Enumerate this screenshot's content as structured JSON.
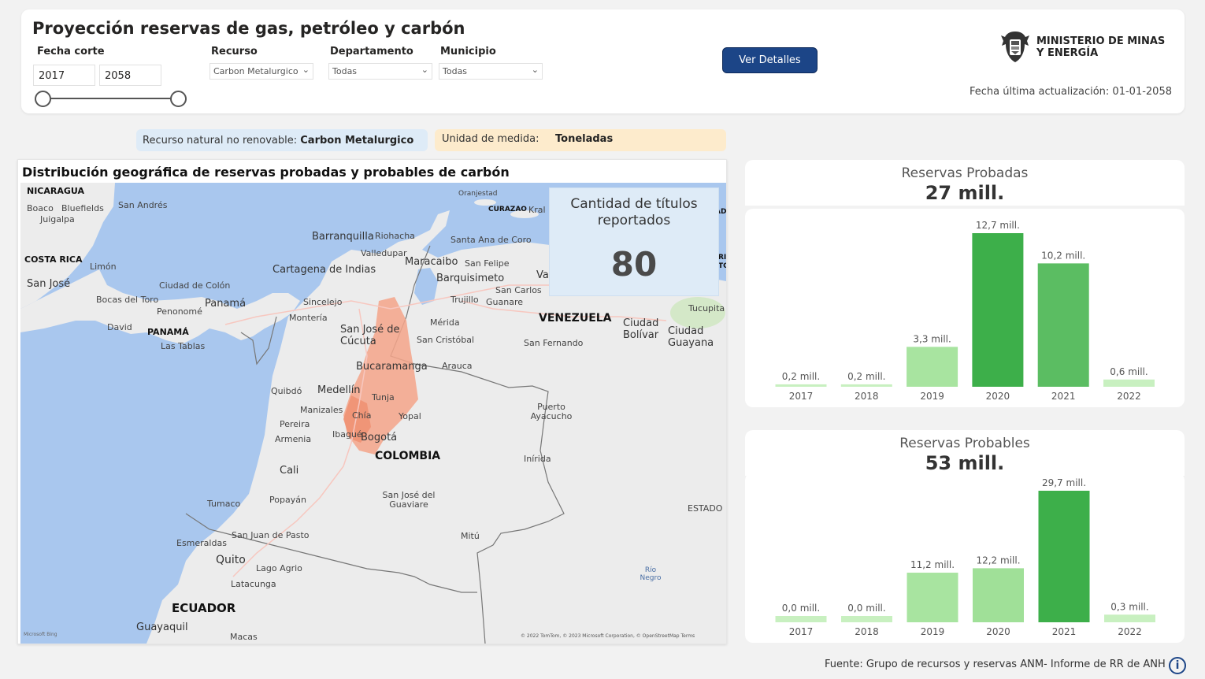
{
  "header": {
    "title": "Proyección reservas de gas, petróleo y carbón",
    "fecha_corte_label": "Fecha corte",
    "fecha_desde": "2017",
    "fecha_hasta": "2058",
    "recurso_label": "Recurso",
    "recurso_value": "Carbon Metalurgico",
    "departamento_label": "Departamento",
    "departamento_value": "Todas",
    "municipio_label": "Municipio",
    "municipio_value": "Todas",
    "details_button": "Ver Detalles",
    "logo_line1": "MINISTERIO DE MINAS",
    "logo_line2": "Y ENERGÍA",
    "updated": "Fecha última actualización: 01-01-2058"
  },
  "chips": {
    "resource_label": "Recurso natural no renovable: ",
    "resource_value": "Carbon Metalurgico",
    "unit_label": "Unidad de medida:",
    "unit_value": "Toneladas"
  },
  "map": {
    "title": "Distribución geográfica de reservas probadas y probables de carbón",
    "kpi_label": "Cantidad de títulos reportados",
    "kpi_value": "80",
    "attribution": "© 2022 TomTom, © 2023 Microsoft Corporation, © OpenStreetMap  Terms",
    "bing": "Microsoft Bing",
    "labels": {
      "nicaragua": "NICARAGUA",
      "boaco": "Boaco",
      "bluefields": "Bluefields",
      "juigalpa": "Juigalpa",
      "san_andres": "San Andrés",
      "costa_rica": "COSTA RICA",
      "limon": "Limón",
      "san_jose_cr": "San José",
      "ciudad_colon": "Ciudad de Colón",
      "bocas": "Bocas del Toro",
      "panama_city": "Panamá",
      "penonome": "Penonomé",
      "david": "David",
      "panama": "PANAMÁ",
      "las_tablas": "Las Tablas",
      "oranjestad": "Oranjestad",
      "curazao": "CURAZAO",
      "kralendijk": "Kral",
      "barranquilla": "Barranquilla",
      "riohacha": "Riohacha",
      "santa_ana": "Santa Ana de Coro",
      "valledupar": "Valledupar",
      "maracaibo": "Maracaibo",
      "san_felipe": "San Felipe",
      "cartagena": "Cartagena de Indias",
      "barquisimeto": "Barquisimeto",
      "va": "Va",
      "sincelejo": "Sincelejo",
      "trujillo": "Trujillo",
      "san_carlos": "San Carlos",
      "guanare": "Guanare",
      "monteria": "Montería",
      "merida": "Mérida",
      "venezuela": "VENEZUELA",
      "ciudad_bolivar": "Ciudad Bolívar",
      "ciudad_guayana": "Ciudad Guayana",
      "tucupita": "Tucupita",
      "san_jose_cucuta": "San José de Cúcuta",
      "san_cristobal": "San Cristóbal",
      "san_fernando": "San Fernando",
      "bucaramanga": "Bucaramanga",
      "arauca": "Arauca",
      "quibdo": "Quibdó",
      "medellin": "Medellín",
      "tunja": "Tunja",
      "manizales": "Manizales",
      "chia": "Chía",
      "yopal": "Yopal",
      "puerto_ayacucho": "Puerto Ayacucho",
      "pereira": "Pereira",
      "ibague": "Ibagué",
      "bogota": "Bogotá",
      "armenia": "Armenia",
      "colombia": "COLOMBIA",
      "inirida": "Inírida",
      "cali": "Cali",
      "popayan": "Popayán",
      "tumaco": "Tumaco",
      "san_jose_guaviare": "San José del Guaviare",
      "estado": "ESTADO",
      "esmeraldas": "Esmeraldas",
      "pasto": "San Juan de Pasto",
      "mitu": "Mitú",
      "quito": "Quito",
      "lago_agrio": "Lago Agrio",
      "rio_negro": "Río Negro",
      "latacunga": "Latacunga",
      "ecuador": "ECUADOR",
      "guayaquil": "Guayaquil",
      "macas": "Macas",
      "ri": "RI",
      "to": "TO",
      "ad": "AD"
    }
  },
  "charts": [
    {
      "title": "Reservas Probadas",
      "total": "27 mill.",
      "chart_data": {
        "type": "bar",
        "categories": [
          "2017",
          "2018",
          "2019",
          "2020",
          "2021",
          "2022"
        ],
        "values": [
          0.2,
          0.2,
          3.3,
          12.7,
          10.2,
          0.6
        ],
        "labels": [
          "0,2 mill.",
          "0,2 mill.",
          "3,3 mill.",
          "12,7 mill.",
          "10,2 mill.",
          "0,6 mill."
        ],
        "colors": [
          "#c8f0c0",
          "#c8f0c0",
          "#a8e4a0",
          "#3daf4a",
          "#5bbd62",
          "#c8f0c0"
        ],
        "ylim": [
          0,
          12.7
        ]
      }
    },
    {
      "title": "Reservas Probables",
      "total": "53 mill.",
      "chart_data": {
        "type": "bar",
        "categories": [
          "2017",
          "2018",
          "2019",
          "2020",
          "2021",
          "2022"
        ],
        "values": [
          0.0,
          0.0,
          11.2,
          12.2,
          29.7,
          0.3
        ],
        "labels": [
          "0,0 mill.",
          "0,0 mill.",
          "11,2 mill.",
          "12,2 mill.",
          "29,7 mill.",
          "0,3 mill."
        ],
        "colors": [
          "#c8f0c0",
          "#c8f0c0",
          "#a8e4a0",
          "#a0e098",
          "#3daf4a",
          "#c8f0c0"
        ],
        "ylim": [
          0,
          29.7
        ]
      }
    }
  ],
  "footer": {
    "source": "Fuente: Grupo de recursos y reservas ANM- Informe de RR de ANH",
    "info": "i"
  }
}
